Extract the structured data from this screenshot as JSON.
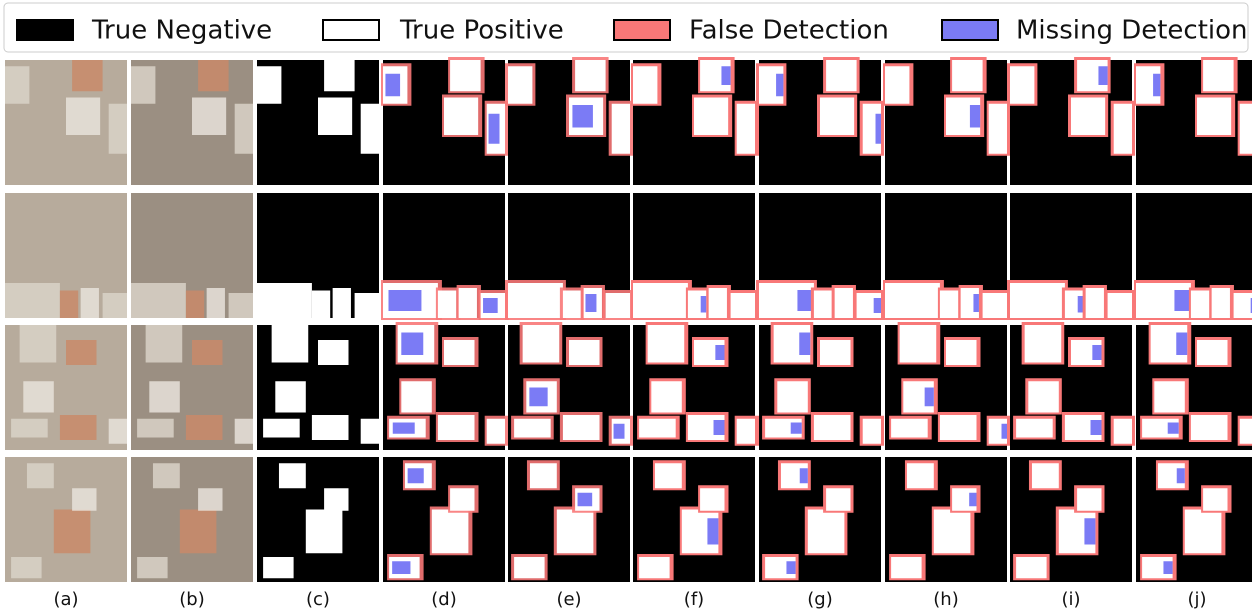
{
  "legend": {
    "items": [
      {
        "label": "True Negative",
        "color": "#000000"
      },
      {
        "label": "True Positive",
        "color": "#ffffff"
      },
      {
        "label": "False Detection",
        "color": "#f87878"
      },
      {
        "label": "Missing Detection",
        "color": "#7b7bf5"
      }
    ]
  },
  "panels": {
    "labels": [
      "(a)",
      "(b)",
      "(c)",
      "(d)",
      "(e)",
      "(f)",
      "(g)",
      "(h)",
      "(i)",
      "(j)"
    ]
  }
}
